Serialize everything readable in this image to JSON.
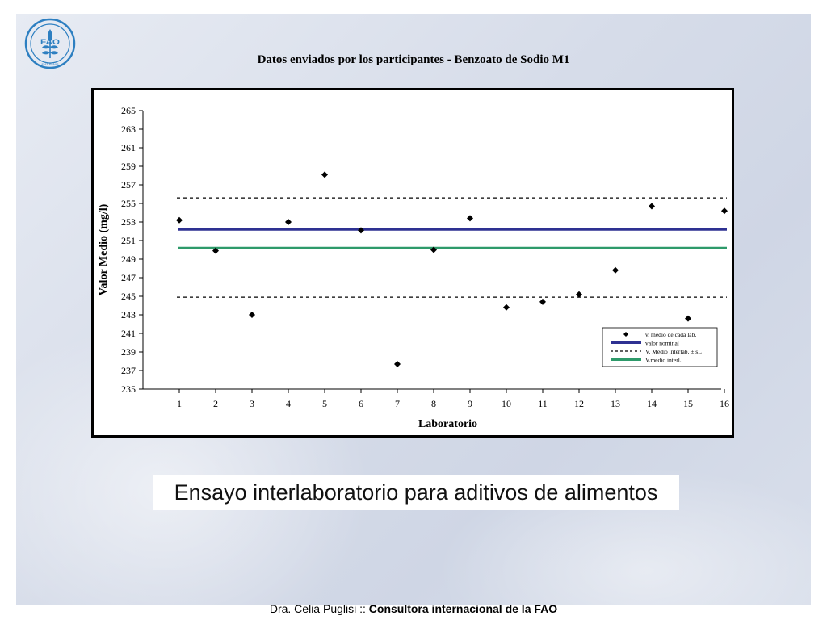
{
  "header": {
    "logo_text": "FAO",
    "logo_motto": "FIAT PANIS"
  },
  "chart_data": {
    "type": "scatter",
    "title": "Datos enviados por los participantes - Benzoato de Sodio M1",
    "xlabel": "Laboratorio",
    "ylabel": "Valor Medio (mg/l)",
    "ylim": [
      235,
      265
    ],
    "y_ticks": [
      235,
      237,
      239,
      241,
      243,
      245,
      247,
      249,
      251,
      253,
      255,
      257,
      259,
      261,
      263,
      265
    ],
    "x_ticks": [
      1,
      2,
      3,
      4,
      5,
      6,
      7,
      8,
      9,
      10,
      11,
      12,
      13,
      14,
      15,
      16
    ],
    "grid": false,
    "legend_placement": "bottom-right",
    "series": [
      {
        "name": "v. medio de cada lab.",
        "kind": "markers",
        "color": "#000000",
        "x": [
          1,
          2,
          3,
          4,
          5,
          6,
          7,
          8,
          9,
          10,
          11,
          12,
          13,
          14,
          15,
          16
        ],
        "y": [
          253.2,
          249.9,
          243.0,
          253.0,
          258.1,
          252.1,
          237.7,
          250.0,
          253.4,
          243.8,
          244.4,
          245.2,
          247.8,
          254.7,
          242.6,
          254.2
        ]
      },
      {
        "name": "valor nominal",
        "kind": "hline",
        "color": "#2e3192",
        "y": 252.2
      },
      {
        "name": "V. Medio interlab. ± sL",
        "kind": "hline-dashed",
        "color": "#000000",
        "y": [
          255.6,
          244.9
        ]
      },
      {
        "name": "V.medio interl.",
        "kind": "hline",
        "color": "#2e9a6a",
        "y": 250.2
      }
    ]
  },
  "subtitle": "Ensayo interlaboratorio para aditivos de alimentos",
  "footer": {
    "author": "Dra. Celia Puglisi",
    "separator": " :: ",
    "role": "Consultora internacional de la FAO"
  }
}
